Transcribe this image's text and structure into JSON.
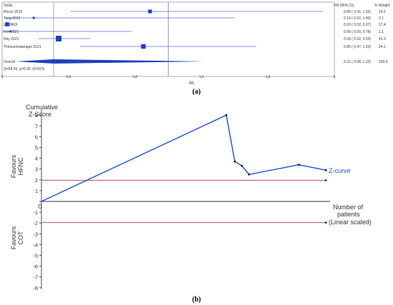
{
  "chart_data": [
    {
      "type": "forest",
      "caption": "(a)",
      "headers": {
        "study": "Study",
        "rr": "RR (95% CI)",
        "weight": "% Weight"
      },
      "studies": [
        {
          "name": "Riccio 2019",
          "rr": 0.89,
          "lo": 0.41,
          "hi": 1.93,
          "rr_text": "0.89  ( 0.41, 1.93)",
          "weight": 14.1,
          "weight_text": "14.1"
        },
        {
          "name": "Tong 2019",
          "rr": 0.19,
          "lo": 0.02,
          "hi": 1.4,
          "rr_text": "0.19  ( 0.02, 1.40)",
          "weight": 2.1,
          "weight_text": "2.1"
        },
        {
          "name": "Lin 2019",
          "rr": 0.03,
          "lo": 0.02,
          "hi": 0.07,
          "rr_text": "0.03  ( 0.02, 0.07)",
          "weight": 17.4,
          "weight_text": "17.4"
        },
        {
          "name": "Kim 2021",
          "rr": 0.05,
          "lo": 0.0,
          "hi": 0.78,
          "rr_text": "0.05  ( 0.00, 0.78)",
          "weight": 1.1,
          "weight_text": "1.1"
        },
        {
          "name": "Nay 2021",
          "rr": 0.34,
          "lo": 0.22,
          "hi": 0.53,
          "rr_text": "0.34  ( 0.22, 0.53)",
          "weight": 41.3,
          "weight_text": "41.3"
        },
        {
          "name": "Thiruvenkatarajan 2021",
          "rr": 0.85,
          "lo": 0.47,
          "hi": 1.53,
          "rr_text": "0.85  ( 0.47, 1.53)",
          "weight": 24.1,
          "weight_text": "24.1"
        }
      ],
      "overall": {
        "name": "Overall",
        "rr": 0.31,
        "lo": 0.08,
        "hi": 1.22,
        "rr_text": "0.31  ( 0.08, 1.22)",
        "weight_text": "100.0"
      },
      "heterogeneity": "Q=58.26, p=0.00, I2=91%",
      "x_ticks": [
        0,
        0.4,
        0.8,
        1.2,
        1.6,
        2
      ],
      "x_tick_labels": [
        "0",
        "0.4",
        "0.8",
        "1.2",
        "1.6",
        "2"
      ],
      "xlabel": "RR",
      "xlim": [
        0,
        2
      ],
      "reference_line": 1,
      "colors": {
        "marker": "#1f3fbf",
        "line": "#5a6ad8",
        "axis": "#777777"
      }
    },
    {
      "type": "line",
      "caption": "(b)",
      "ylabel_line1": "Cumulative",
      "ylabel_line2": "Z-Score",
      "xlabel_line1": "Number of",
      "xlabel_line2": "patients",
      "xlabel_line3": "(Linear scaled)",
      "upper_label_line1": "Favours",
      "upper_label_line2": "HFNC",
      "lower_label_line1": "Favours",
      "lower_label_line2": "COT",
      "series": [
        {
          "name": "Z-curve",
          "x": [
            0,
            130,
            136,
            141,
            146,
            181,
            200
          ],
          "y": [
            0,
            8.0,
            3.7,
            3.3,
            2.5,
            3.4,
            2.9
          ]
        }
      ],
      "reference_lines": [
        1.96,
        -1.96
      ],
      "x_origin_label": "0",
      "ylim": [
        -8,
        8
      ],
      "xlim": [
        0,
        200
      ],
      "y_ticks": [
        8,
        7,
        6,
        5,
        4,
        3,
        2,
        1,
        0,
        -1,
        -2,
        -3,
        -4,
        -5,
        -6,
        -7,
        -8
      ],
      "y_tick_labels": [
        "8",
        "7",
        "6",
        "5",
        "4",
        "3",
        "2",
        "1",
        "",
        "-1",
        "-2",
        "-3",
        "-4",
        "-5",
        "-6",
        "-7",
        "-8"
      ],
      "colors": {
        "curve": "#1f4fd8",
        "boundary": "#c0504d",
        "axis": "#333333"
      }
    }
  ]
}
